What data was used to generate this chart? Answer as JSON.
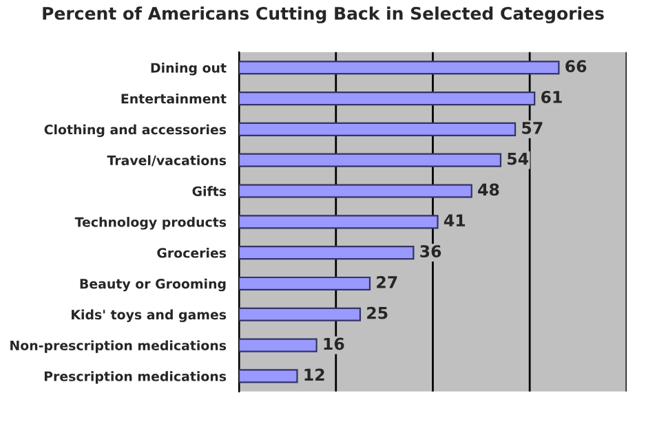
{
  "chart_data": {
    "type": "bar",
    "orientation": "horizontal",
    "title": "Percent of Americans Cutting Back in Selected Categories",
    "categories": [
      "Dining out",
      "Entertainment",
      "Clothing and accessories",
      "Travel/vacations",
      "Gifts",
      "Technology products",
      "Groceries",
      "Beauty or Grooming",
      "Kids' toys and games",
      "Non-prescription medications",
      "Prescription medications"
    ],
    "values": [
      66,
      61,
      57,
      54,
      48,
      41,
      36,
      27,
      25,
      16,
      12
    ],
    "color": "#9999ff",
    "xlim": [
      0,
      80
    ],
    "xticks": [
      {
        "value": 0,
        "label": null
      },
      {
        "value": 20,
        "label": null
      },
      {
        "value": 40,
        "label": null
      },
      {
        "value": 60,
        "label": null
      },
      {
        "value": 80,
        "label": null
      }
    ],
    "tick_labels": "y",
    "grid": "x",
    "data_labels": true,
    "legend": false
  }
}
